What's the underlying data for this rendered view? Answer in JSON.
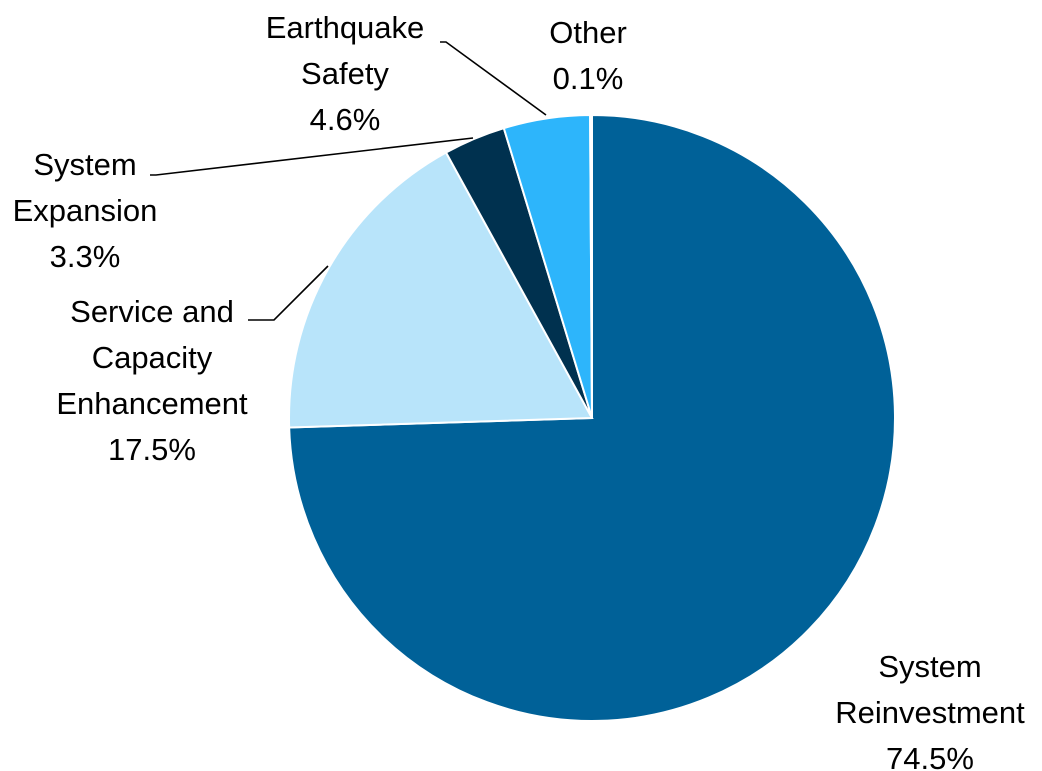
{
  "chart_data": {
    "type": "pie",
    "title": "",
    "slices": [
      {
        "name": "System Reinvestment",
        "label_lines": [
          "System",
          "Reinvestment"
        ],
        "value": 74.5,
        "value_label": "74.5%",
        "color": "#006198"
      },
      {
        "name": "Service and Capacity Enhancement",
        "label_lines": [
          "Service and",
          "Capacity",
          "Enhancement"
        ],
        "value": 17.5,
        "value_label": "17.5%",
        "color": "#B8E4FA"
      },
      {
        "name": "System Expansion",
        "label_lines": [
          "System",
          "Expansion"
        ],
        "value": 3.3,
        "value_label": "3.3%",
        "color": "#00314F"
      },
      {
        "name": "Earthquake Safety",
        "label_lines": [
          "Earthquake",
          "Safety"
        ],
        "value": 4.6,
        "value_label": "4.6%",
        "color": "#2DB5FB"
      },
      {
        "name": "Other",
        "label_lines": [
          "Other"
        ],
        "value": 0.1,
        "value_label": "0.1%",
        "color": "#006198"
      }
    ],
    "start_angle_deg": 0,
    "direction": "clockwise",
    "legend": "none",
    "data_labels": "outside with leader lines"
  }
}
